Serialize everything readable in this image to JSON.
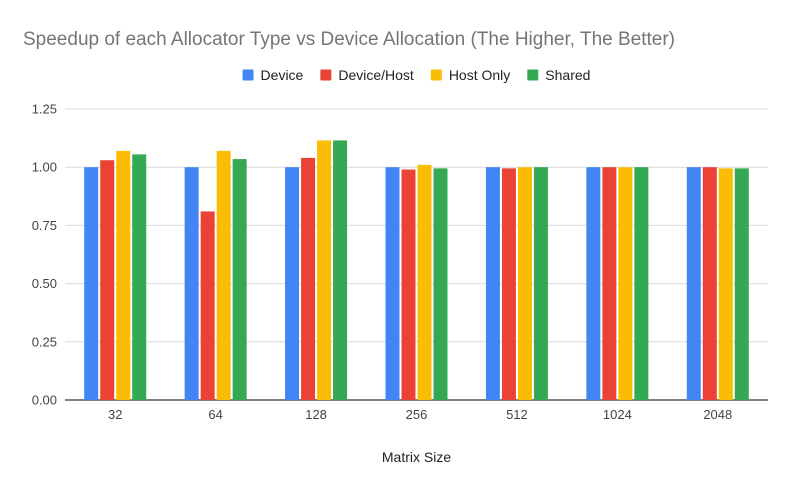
{
  "chart_data": {
    "type": "bar",
    "title": "Speedup of each Allocator Type vs Device Allocation (The Higher, The Better)",
    "xlabel": "Matrix Size",
    "ylabel": "",
    "categories": [
      "32",
      "64",
      "128",
      "256",
      "512",
      "1024",
      "2048"
    ],
    "series": [
      {
        "name": "Device",
        "color": "#4285F4",
        "values": [
          1.0,
          1.0,
          1.0,
          1.0,
          1.0,
          1.0,
          1.0
        ]
      },
      {
        "name": "Device/Host",
        "color": "#EA4335",
        "values": [
          1.03,
          0.81,
          1.04,
          0.99,
          0.995,
          1.0,
          1.0
        ]
      },
      {
        "name": "Host Only",
        "color": "#FBBC04",
        "values": [
          1.07,
          1.07,
          1.115,
          1.01,
          1.0,
          1.0,
          0.995
        ]
      },
      {
        "name": "Shared",
        "color": "#34A853",
        "values": [
          1.055,
          1.035,
          1.115,
          0.995,
          1.0,
          1.0,
          0.995
        ]
      }
    ],
    "ylim": [
      0,
      1.25
    ],
    "yticks": [
      "0.00",
      "0.25",
      "0.50",
      "0.75",
      "1.00",
      "1.25"
    ],
    "grid": true,
    "legend_position": "top-center"
  }
}
